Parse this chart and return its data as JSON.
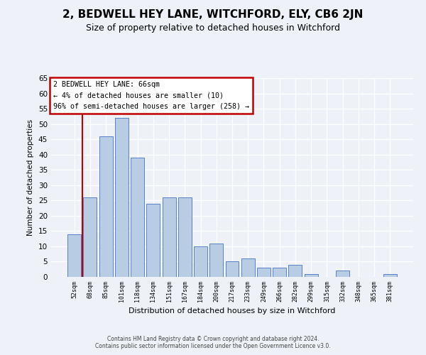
{
  "title": "2, BEDWELL HEY LANE, WITCHFORD, ELY, CB6 2JN",
  "subtitle": "Size of property relative to detached houses in Witchford",
  "xlabel": "Distribution of detached houses by size in Witchford",
  "ylabel": "Number of detached properties",
  "categories": [
    "52sqm",
    "68sqm",
    "85sqm",
    "101sqm",
    "118sqm",
    "134sqm",
    "151sqm",
    "167sqm",
    "184sqm",
    "200sqm",
    "217sqm",
    "233sqm",
    "249sqm",
    "266sqm",
    "282sqm",
    "299sqm",
    "315sqm",
    "332sqm",
    "348sqm",
    "365sqm",
    "381sqm"
  ],
  "values": [
    14,
    26,
    46,
    52,
    39,
    24,
    26,
    26,
    10,
    11,
    5,
    6,
    3,
    3,
    4,
    1,
    0,
    2,
    0,
    0,
    1
  ],
  "bar_color": "#b8cce4",
  "bar_edge_color": "#4472c4",
  "highlight_bar_index": 1,
  "highlight_color": "#c00000",
  "ylim": [
    0,
    65
  ],
  "yticks": [
    0,
    5,
    10,
    15,
    20,
    25,
    30,
    35,
    40,
    45,
    50,
    55,
    60,
    65
  ],
  "annotation_title": "2 BEDWELL HEY LANE: 66sqm",
  "annotation_line1": "← 4% of detached houses are smaller (10)",
  "annotation_line2": "96% of semi-detached houses are larger (258) →",
  "annotation_box_color": "#c00000",
  "footer_line1": "Contains HM Land Registry data © Crown copyright and database right 2024.",
  "footer_line2": "Contains public sector information licensed under the Open Government Licence v3.0.",
  "bg_color": "#eef2f8",
  "grid_color": "#ffffff",
  "title_fontsize": 11,
  "subtitle_fontsize": 9
}
